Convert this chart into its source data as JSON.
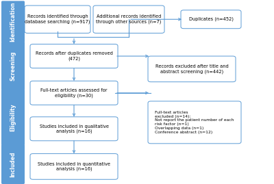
{
  "background_color": "#ffffff",
  "sidebar_color": "#5b9bd5",
  "box_border_color": "#5b9bd5",
  "arrow_color": "#5b9bd5",
  "text_color": "#000000",
  "sidebar_labels": [
    "Identification",
    "Screening",
    "Eligibility",
    "Included"
  ],
  "figsize": [
    4.0,
    2.69
  ],
  "dpi": 100
}
